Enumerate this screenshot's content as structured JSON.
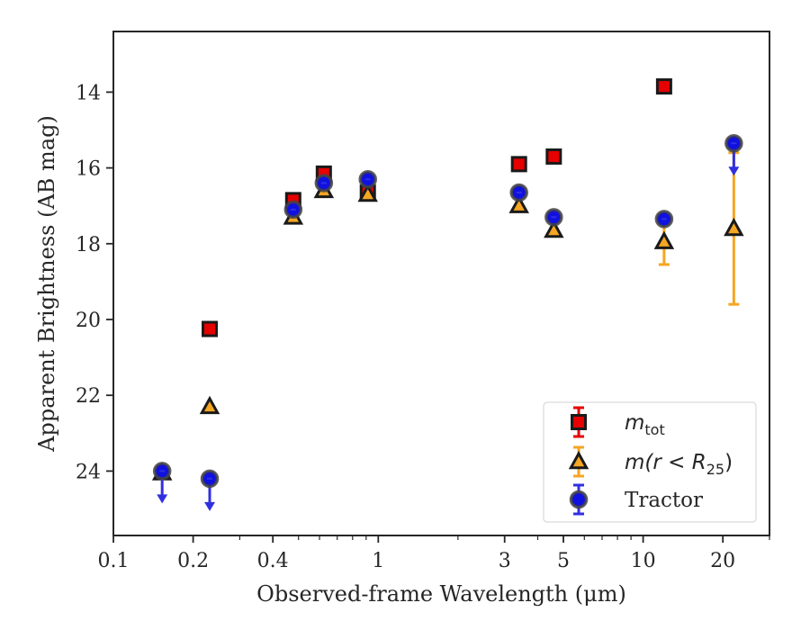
{
  "chart_data": {
    "type": "scatter",
    "xscale": "log",
    "yaxis_inverted": true,
    "xlim": [
      0.1,
      30
    ],
    "ylim": [
      12.4,
      25.7
    ],
    "xlabel": "Observed-frame Wavelength (μm)",
    "ylabel": "Apparent Brightness (AB mag)",
    "xticks": [
      {
        "value": 0.1,
        "label": "0.1"
      },
      {
        "value": 0.2,
        "label": "0.2"
      },
      {
        "value": 0.4,
        "label": "0.4"
      },
      {
        "value": 1,
        "label": "1"
      },
      {
        "value": 3,
        "label": "3"
      },
      {
        "value": 5,
        "label": "5"
      },
      {
        "value": 10,
        "label": "10"
      },
      {
        "value": 20,
        "label": "20"
      }
    ],
    "yticks": [
      14,
      16,
      18,
      20,
      22,
      24
    ],
    "legend_position": "lower right",
    "series": [
      {
        "name": "m_tot",
        "legend_main": "m",
        "legend_sub": "tot",
        "marker": "square",
        "color": "#e60000",
        "edge_color": "#1a1a1a",
        "errbar_color": "#e60000",
        "points": [
          {
            "x": 0.231,
            "y": 20.25
          },
          {
            "x": 0.4775,
            "y": 16.85
          },
          {
            "x": 0.6231,
            "y": 16.15
          },
          {
            "x": 0.9134,
            "y": 16.65
          },
          {
            "x": 3.4,
            "y": 15.9
          },
          {
            "x": 4.6,
            "y": 15.7
          },
          {
            "x": 12.0,
            "y": 13.85
          }
        ]
      },
      {
        "name": "m(r < R_25)",
        "legend_text": "m(r < R",
        "legend_sub": "25",
        "legend_tail": ")",
        "marker": "triangle",
        "color": "#f5a623",
        "edge_color": "#1a1a1a",
        "errbar_color": "#f5a623",
        "points": [
          {
            "x": 0.1528,
            "y": 24.05
          },
          {
            "x": 0.231,
            "y": 22.3
          },
          {
            "x": 0.4775,
            "y": 17.3
          },
          {
            "x": 0.6231,
            "y": 16.6
          },
          {
            "x": 0.9134,
            "y": 16.7
          },
          {
            "x": 3.4,
            "y": 17.0
          },
          {
            "x": 4.6,
            "y": 17.65
          },
          {
            "x": 12.0,
            "y": 17.95,
            "err_lower": 0.65,
            "err_upper": 0.6
          },
          {
            "x": 22.0,
            "y": 17.6,
            "err_lower": 2.0,
            "err_upper": 2.0
          }
        ]
      },
      {
        "name": "Tractor",
        "marker": "circle",
        "color": "#1010e0",
        "edge_color": "#444444",
        "errbar_color": "#3030e0",
        "points": [
          {
            "x": 0.1528,
            "y": 24.0,
            "upper_limit": true
          },
          {
            "x": 0.231,
            "y": 24.2,
            "upper_limit": true
          },
          {
            "x": 0.4775,
            "y": 17.1
          },
          {
            "x": 0.6231,
            "y": 16.4
          },
          {
            "x": 0.9134,
            "y": 16.3
          },
          {
            "x": 3.4,
            "y": 16.65
          },
          {
            "x": 4.6,
            "y": 17.3
          },
          {
            "x": 12.0,
            "y": 17.35
          },
          {
            "x": 22.0,
            "y": 15.35,
            "upper_limit": true
          }
        ]
      }
    ]
  }
}
